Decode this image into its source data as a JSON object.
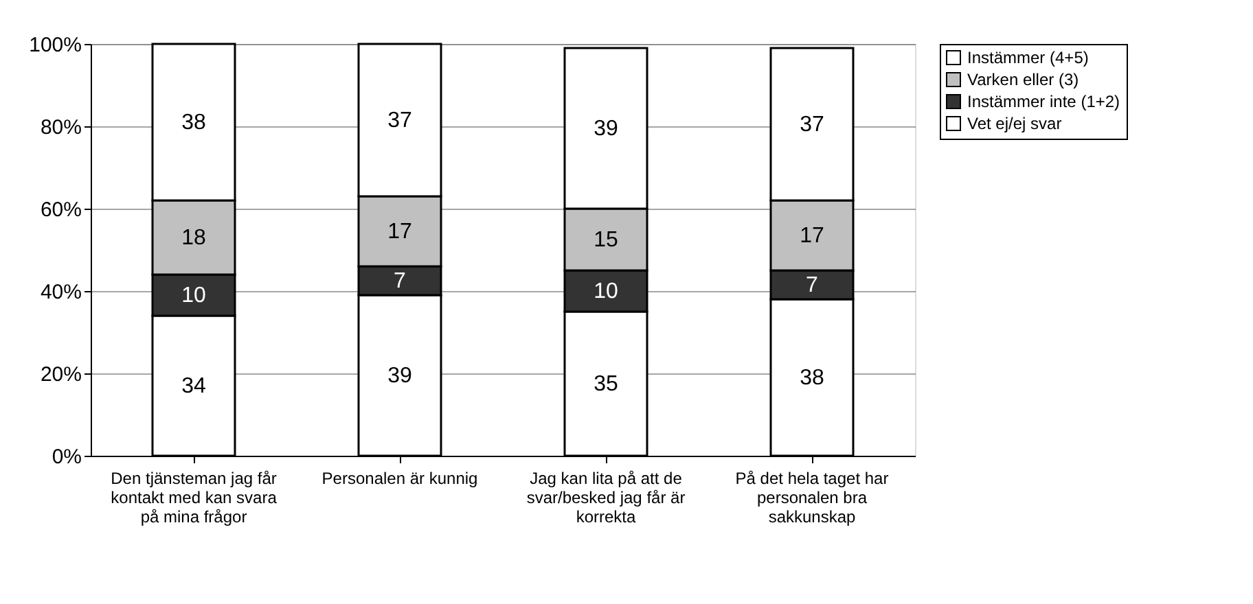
{
  "chart_data": {
    "type": "bar",
    "stacked": true,
    "categories": [
      "Den tjänsteman jag får kontakt med kan svara på mina frågor",
      "Personalen är kunnig",
      "Jag kan lita på att de svar/besked jag får är korrekta",
      "På det hela taget har personalen bra sakkunskap"
    ],
    "series": [
      {
        "name": "Vet ej/ej svar",
        "color": "#ffffff",
        "values": [
          34,
          39,
          35,
          38
        ]
      },
      {
        "name": "Instämmer inte (1+2)",
        "color": "#333333",
        "values": [
          10,
          7,
          10,
          7
        ]
      },
      {
        "name": "Varken eller (3)",
        "color": "#c0c0c0",
        "values": [
          18,
          17,
          15,
          17
        ]
      },
      {
        "name": "Instämmer (4+5)",
        "color": "#ffffff",
        "values": [
          38,
          37,
          39,
          37
        ]
      }
    ],
    "ylim": [
      0,
      100
    ],
    "yticks": [
      {
        "value": 0,
        "label": "0%"
      },
      {
        "value": 20,
        "label": "20%"
      },
      {
        "value": 40,
        "label": "40%"
      },
      {
        "value": 60,
        "label": "60%"
      },
      {
        "value": 80,
        "label": "80%"
      },
      {
        "value": 100,
        "label": "100%"
      }
    ],
    "grid": "y",
    "legend": "right",
    "data_labels": true
  }
}
